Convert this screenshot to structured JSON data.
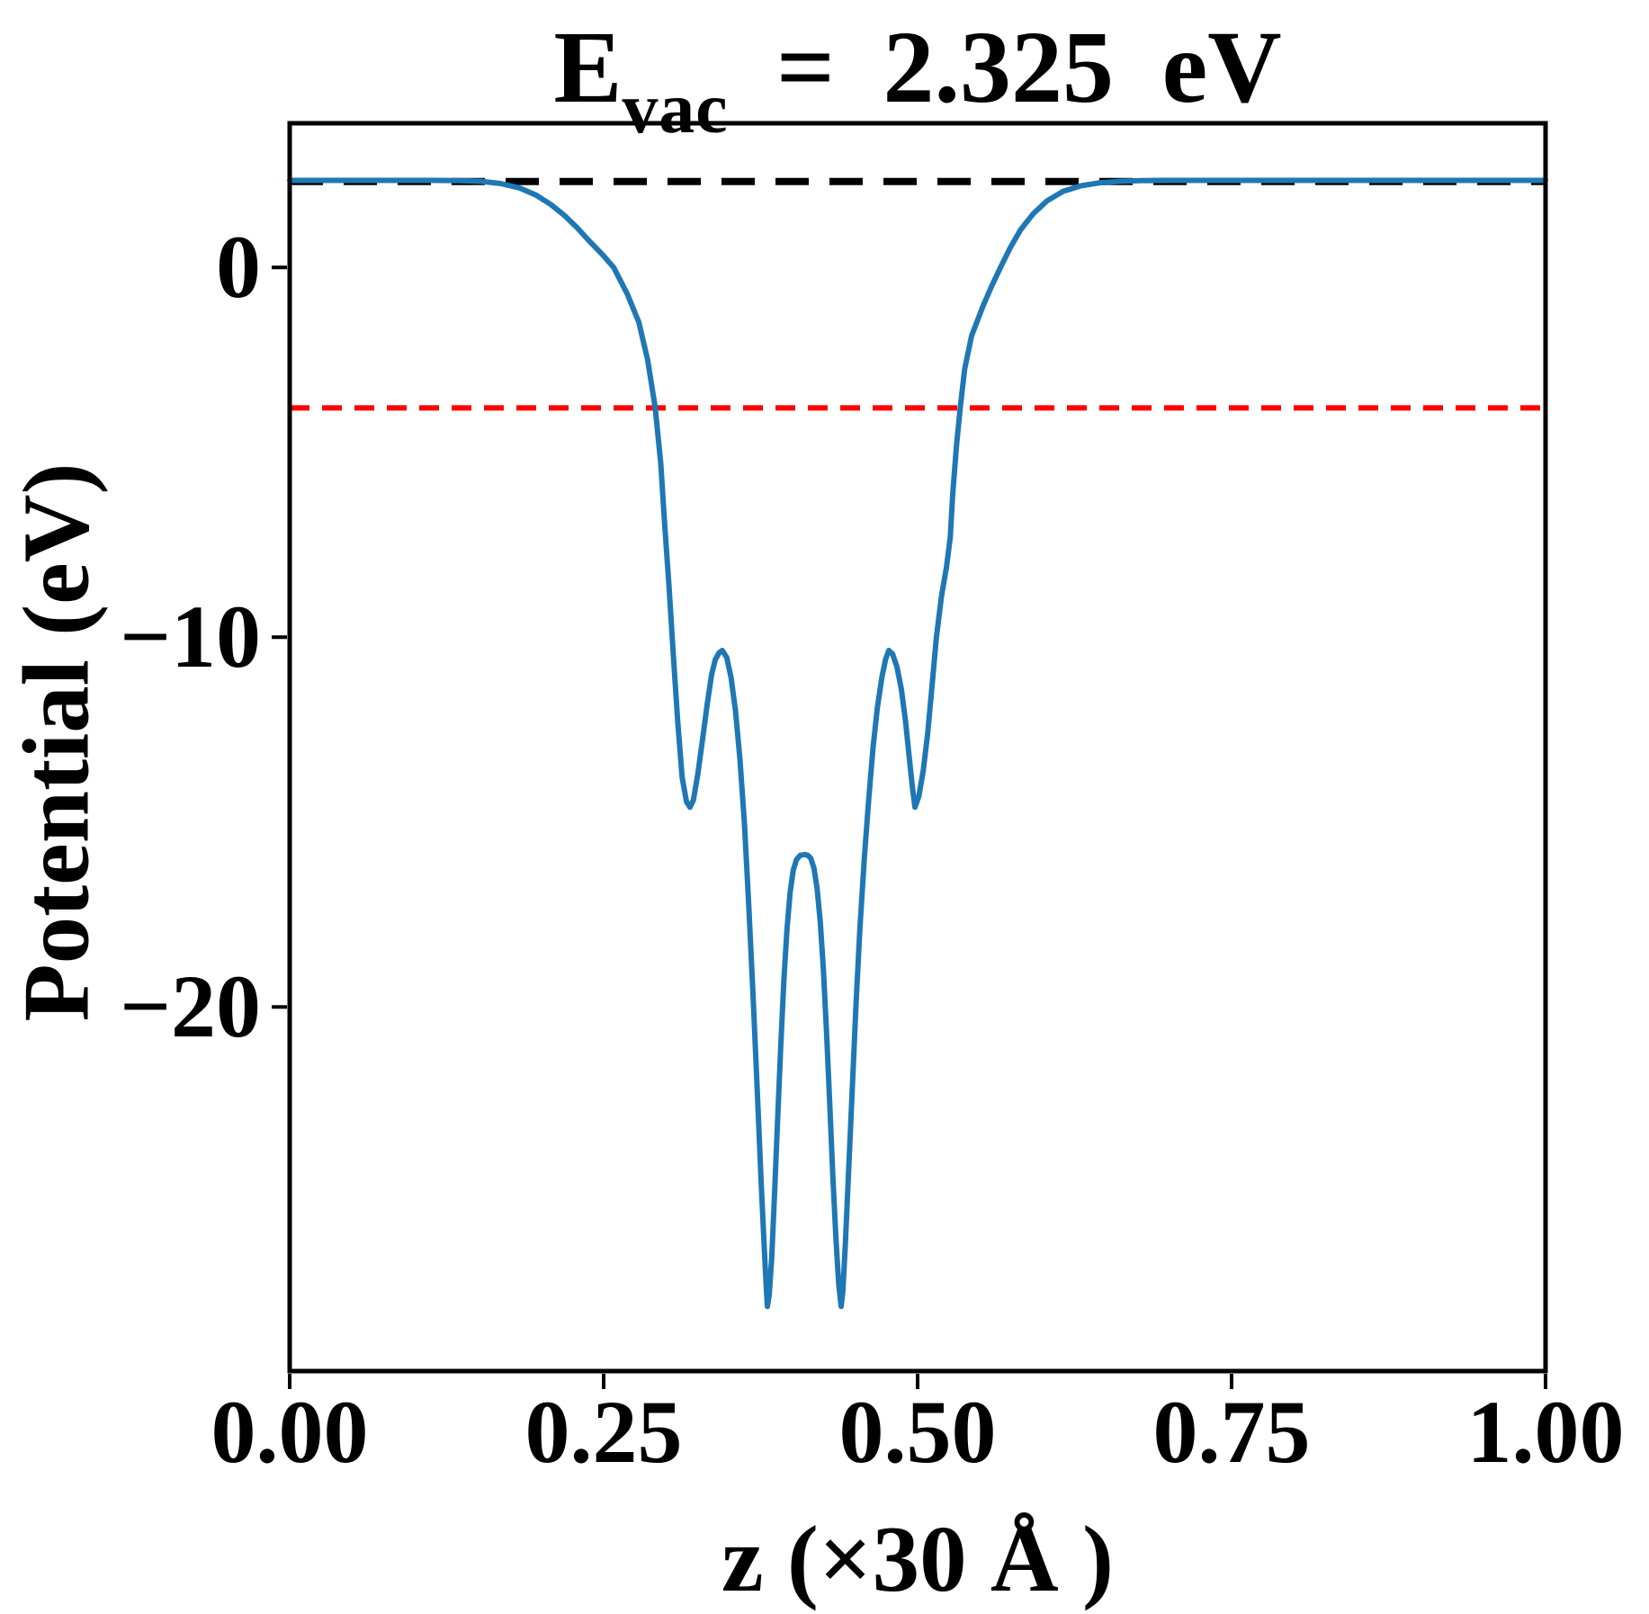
{
  "figure": {
    "background": "#ffffff",
    "text_color": "#000000"
  },
  "chart_data": {
    "type": "line",
    "title": {
      "prefix": "E",
      "subscript": "vac",
      "suffix": " = 2.325 eV"
    },
    "xlabel": "z (×30 Å )",
    "ylabel": "Potential (eV)",
    "xlim": [
      0,
      1
    ],
    "ylim": [
      -29.85,
      3.9
    ],
    "grid": false,
    "legend": null,
    "x_ticks": [
      {
        "value": 0.0,
        "label": "0.00"
      },
      {
        "value": 0.25,
        "label": "0.25"
      },
      {
        "value": 0.5,
        "label": "0.50"
      },
      {
        "value": 0.75,
        "label": "0.75"
      },
      {
        "value": 1.0,
        "label": "1.00"
      }
    ],
    "y_ticks": [
      {
        "value": 0,
        "label": "0"
      },
      {
        "value": -10,
        "label": "−10"
      },
      {
        "value": -20,
        "label": "−20"
      }
    ],
    "reference_lines": [
      {
        "name": "vacuum-level",
        "value": 2.325,
        "color": "#000000",
        "style": "dashed"
      },
      {
        "name": "fermi-level",
        "value": -3.8,
        "color": "#ff0000",
        "style": "dashed"
      }
    ],
    "annotations": {
      "E_vac_eV": 2.325
    },
    "series": [
      {
        "name": "planar-averaged-potential",
        "color": "#1f77b4",
        "style": "solid",
        "points": [
          [
            0.0,
            2.355
          ],
          [
            0.04,
            2.355
          ],
          [
            0.08,
            2.355
          ],
          [
            0.115,
            2.355
          ],
          [
            0.135,
            2.35
          ],
          [
            0.152,
            2.33
          ],
          [
            0.168,
            2.27
          ],
          [
            0.183,
            2.15
          ],
          [
            0.196,
            1.96
          ],
          [
            0.208,
            1.7
          ],
          [
            0.219,
            1.4
          ],
          [
            0.229,
            1.07
          ],
          [
            0.239,
            0.7
          ],
          [
            0.249,
            0.35
          ],
          [
            0.258,
            0.0
          ],
          [
            0.269,
            -0.73
          ],
          [
            0.278,
            -1.48
          ],
          [
            0.285,
            -2.5
          ],
          [
            0.291,
            -3.77
          ],
          [
            0.2955,
            -5.3
          ],
          [
            0.2985,
            -6.9
          ],
          [
            0.302,
            -8.6
          ],
          [
            0.3055,
            -10.5
          ],
          [
            0.309,
            -12.3
          ],
          [
            0.3125,
            -13.8
          ],
          [
            0.316,
            -14.45
          ],
          [
            0.3188,
            -14.6
          ],
          [
            0.3215,
            -14.4
          ],
          [
            0.325,
            -13.7
          ],
          [
            0.329,
            -12.7
          ],
          [
            0.3325,
            -11.8
          ],
          [
            0.336,
            -11.0
          ],
          [
            0.339,
            -10.6
          ],
          [
            0.342,
            -10.42
          ],
          [
            0.3445,
            -10.36
          ],
          [
            0.348,
            -10.55
          ],
          [
            0.3515,
            -11.1
          ],
          [
            0.355,
            -12.0
          ],
          [
            0.3585,
            -13.3
          ],
          [
            0.362,
            -15.0
          ],
          [
            0.3655,
            -17.2
          ],
          [
            0.369,
            -19.7
          ],
          [
            0.3725,
            -22.4
          ],
          [
            0.3755,
            -24.8
          ],
          [
            0.378,
            -26.6
          ],
          [
            0.3795,
            -27.6
          ],
          [
            0.3804,
            -28.1
          ],
          [
            0.3818,
            -27.8
          ],
          [
            0.3838,
            -26.8
          ],
          [
            0.386,
            -25.1
          ],
          [
            0.3885,
            -23.1
          ],
          [
            0.391,
            -21.1
          ],
          [
            0.3935,
            -19.3
          ],
          [
            0.396,
            -17.9
          ],
          [
            0.3985,
            -16.9
          ],
          [
            0.401,
            -16.3
          ],
          [
            0.4035,
            -16.02
          ],
          [
            0.4065,
            -15.9
          ],
          [
            0.4104,
            -15.88
          ],
          [
            0.4125,
            -15.9
          ],
          [
            0.415,
            -15.98
          ],
          [
            0.4175,
            -16.25
          ],
          [
            0.42,
            -16.8
          ],
          [
            0.4225,
            -17.7
          ],
          [
            0.425,
            -19.0
          ],
          [
            0.4275,
            -20.7
          ],
          [
            0.43,
            -22.6
          ],
          [
            0.4325,
            -24.6
          ],
          [
            0.435,
            -26.3
          ],
          [
            0.4372,
            -27.5
          ],
          [
            0.4391,
            -28.1
          ],
          [
            0.4405,
            -27.7
          ],
          [
            0.4425,
            -26.4
          ],
          [
            0.445,
            -24.5
          ],
          [
            0.448,
            -22.2
          ],
          [
            0.451,
            -19.9
          ],
          [
            0.454,
            -17.9
          ],
          [
            0.4575,
            -16.0
          ],
          [
            0.461,
            -14.4
          ],
          [
            0.4645,
            -13.0
          ],
          [
            0.468,
            -11.9
          ],
          [
            0.4715,
            -11.1
          ],
          [
            0.4745,
            -10.6
          ],
          [
            0.4771,
            -10.36
          ],
          [
            0.48,
            -10.45
          ],
          [
            0.4835,
            -10.8
          ],
          [
            0.487,
            -11.4
          ],
          [
            0.4905,
            -12.3
          ],
          [
            0.4935,
            -13.3
          ],
          [
            0.496,
            -14.1
          ],
          [
            0.4979,
            -14.6
          ],
          [
            0.501,
            -14.3
          ],
          [
            0.5045,
            -13.6
          ],
          [
            0.508,
            -12.6
          ],
          [
            0.5115,
            -11.3
          ],
          [
            0.515,
            -10.0
          ],
          [
            0.519,
            -8.9
          ],
          [
            0.523,
            -8.1
          ],
          [
            0.526,
            -7.3
          ],
          [
            0.528,
            -6.1
          ],
          [
            0.531,
            -4.8
          ],
          [
            0.534,
            -3.77
          ],
          [
            0.5375,
            -2.75
          ],
          [
            0.543,
            -1.85
          ],
          [
            0.552,
            -1.05
          ],
          [
            0.559,
            -0.5
          ],
          [
            0.566,
            0.0
          ],
          [
            0.574,
            0.55
          ],
          [
            0.582,
            1.02
          ],
          [
            0.592,
            1.45
          ],
          [
            0.603,
            1.8
          ],
          [
            0.616,
            2.06
          ],
          [
            0.63,
            2.21
          ],
          [
            0.645,
            2.29
          ],
          [
            0.661,
            2.33
          ],
          [
            0.678,
            2.35
          ],
          [
            0.7,
            2.355
          ],
          [
            0.74,
            2.355
          ],
          [
            0.8,
            2.355
          ],
          [
            0.87,
            2.355
          ],
          [
            0.94,
            2.355
          ],
          [
            1.0,
            2.355
          ]
        ]
      }
    ]
  }
}
